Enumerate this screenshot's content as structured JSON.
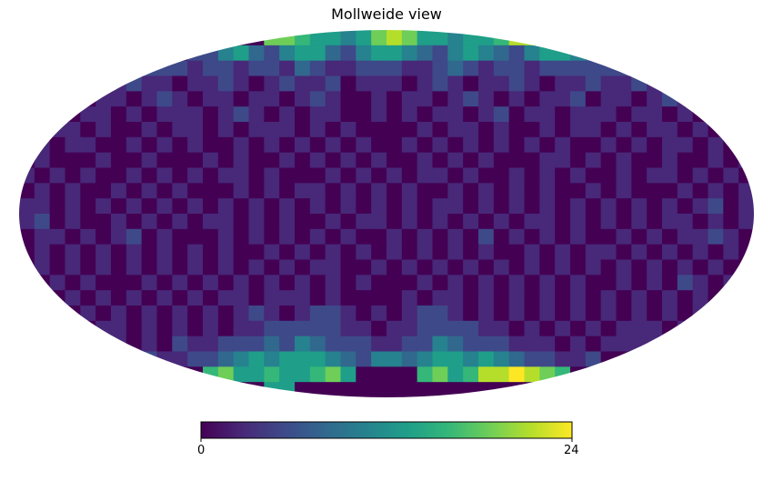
{
  "chart_data": {
    "type": "heatmap",
    "projection": "mollweide",
    "title": "Mollweide view",
    "colormap": "viridis",
    "colorbar": {
      "min_label": "0",
      "max_label": "24",
      "vmin": 0,
      "vmax": 24
    },
    "colors": {
      "viridis": [
        "#440154",
        "#482878",
        "#3e4989",
        "#31688e",
        "#26828e",
        "#1f9e89",
        "#35b779",
        "#6ece58",
        "#b5de2b",
        "#fde725"
      ]
    },
    "grid_cols": 48,
    "grid_rows": 24,
    "values": [
      [
        0,
        0,
        0,
        0,
        0,
        0,
        0,
        0,
        0,
        0,
        0,
        0,
        0,
        0,
        0,
        0,
        18,
        18,
        16,
        14,
        12,
        10,
        14,
        18,
        20,
        18,
        14,
        12,
        10,
        12,
        14,
        16,
        22,
        22,
        24,
        16,
        0,
        0,
        0,
        0,
        0,
        0,
        0,
        0,
        0,
        0,
        0,
        0
      ],
      [
        0,
        0,
        0,
        0,
        0,
        0,
        0,
        0,
        0,
        0,
        0,
        4,
        6,
        10,
        12,
        8,
        6,
        10,
        14,
        12,
        8,
        6,
        10,
        14,
        14,
        10,
        8,
        6,
        10,
        12,
        10,
        8,
        6,
        10,
        14,
        12,
        10,
        8,
        0,
        0,
        0,
        0,
        0,
        0,
        0,
        0,
        0,
        0
      ],
      [
        0,
        0,
        0,
        0,
        0,
        0,
        0,
        0,
        5,
        4,
        6,
        3,
        5,
        4,
        3,
        6,
        4,
        3,
        8,
        5,
        3,
        2,
        4,
        6,
        5,
        3,
        2,
        5,
        8,
        4,
        3,
        5,
        4,
        3,
        6,
        5,
        4,
        6,
        5,
        6,
        0,
        0,
        0,
        0,
        0,
        0,
        0,
        0
      ],
      [
        0,
        0,
        0,
        0,
        0,
        2,
        3,
        5,
        3,
        2,
        1,
        3,
        2,
        4,
        3,
        1,
        2,
        5,
        3,
        2,
        4,
        1,
        2,
        3,
        2,
        1,
        3,
        4,
        2,
        1,
        3,
        2,
        4,
        2,
        1,
        3,
        2,
        4,
        3,
        2,
        5,
        3,
        3,
        0,
        0,
        0,
        0,
        0
      ],
      [
        0,
        0,
        0,
        2,
        1,
        3,
        2,
        1,
        2,
        4,
        2,
        1,
        3,
        2,
        1,
        2,
        3,
        1,
        2,
        4,
        2,
        1,
        0,
        2,
        1,
        3,
        2,
        1,
        2,
        4,
        2,
        1,
        3,
        1,
        2,
        2,
        4,
        1,
        2,
        3,
        1,
        2,
        4,
        2,
        2,
        0,
        0,
        0
      ],
      [
        0,
        0,
        2,
        1,
        2,
        3,
        1,
        2,
        1,
        2,
        3,
        2,
        1,
        2,
        4,
        2,
        1,
        2,
        1,
        3,
        2,
        0,
        1,
        2,
        0,
        2,
        1,
        3,
        2,
        1,
        2,
        4,
        1,
        2,
        3,
        1,
        2,
        3,
        2,
        1,
        2,
        3,
        1,
        2,
        1,
        3,
        0,
        0
      ],
      [
        0,
        1,
        2,
        3,
        1,
        2,
        1,
        0,
        2,
        1,
        2,
        3,
        1,
        2,
        1,
        2,
        3,
        2,
        1,
        2,
        1,
        2,
        0,
        1,
        0,
        1,
        2,
        1,
        2,
        3,
        1,
        2,
        1,
        0,
        2,
        1,
        3,
        2,
        1,
        2,
        1,
        3,
        2,
        1,
        2,
        1,
        2,
        0
      ],
      [
        0,
        2,
        1,
        2,
        2,
        1,
        0,
        2,
        1,
        3,
        1,
        2,
        1,
        0,
        2,
        1,
        2,
        1,
        3,
        1,
        2,
        1,
        2,
        0,
        1,
        2,
        1,
        2,
        1,
        2,
        1,
        3,
        1,
        2,
        1,
        2,
        1,
        0,
        2,
        1,
        2,
        1,
        2,
        3,
        1,
        2,
        1,
        0
      ],
      [
        1,
        2,
        1,
        0,
        1,
        2,
        1,
        1,
        2,
        1,
        0,
        1,
        2,
        1,
        2,
        1,
        0,
        2,
        1,
        2,
        1,
        3,
        1,
        2,
        1,
        0,
        2,
        1,
        2,
        1,
        2,
        1,
        0,
        1,
        2,
        3,
        1,
        2,
        1,
        2,
        1,
        1,
        2,
        1,
        0,
        2,
        1,
        2
      ],
      [
        2,
        1,
        3,
        1,
        2,
        1,
        0,
        2,
        1,
        2,
        1,
        2,
        1,
        2,
        3,
        1,
        2,
        1,
        0,
        1,
        2,
        1,
        2,
        1,
        2,
        1,
        2,
        3,
        1,
        2,
        0,
        1,
        2,
        1,
        2,
        1,
        2,
        1,
        0,
        2,
        1,
        2,
        3,
        1,
        2,
        1,
        2,
        1
      ],
      [
        1,
        2,
        1,
        2,
        0,
        1,
        2,
        1,
        2,
        1,
        3,
        1,
        0,
        1,
        2,
        1,
        2,
        1,
        2,
        3,
        1,
        2,
        1,
        2,
        1,
        2,
        1,
        0,
        2,
        1,
        2,
        1,
        3,
        1,
        2,
        0,
        1,
        2,
        1,
        2,
        1,
        0,
        1,
        2,
        1,
        2,
        1,
        2
      ],
      [
        3,
        2,
        1,
        2,
        1,
        2,
        1,
        2,
        0,
        2,
        1,
        2,
        1,
        2,
        1,
        2,
        1,
        2,
        1,
        2,
        1,
        2,
        1,
        2,
        1,
        2,
        1,
        2,
        3,
        1,
        2,
        1,
        2,
        1,
        2,
        1,
        2,
        1,
        2,
        1,
        2,
        1,
        2,
        1,
        2,
        4,
        1,
        2
      ],
      [
        2,
        4,
        1,
        2,
        1,
        0,
        2,
        1,
        2,
        1,
        2,
        1,
        2,
        3,
        1,
        2,
        1,
        2,
        0,
        1,
        2,
        1,
        3,
        2,
        1,
        2,
        1,
        2,
        1,
        2,
        1,
        2,
        1,
        3,
        2,
        1,
        2,
        1,
        2,
        1,
        2,
        1,
        2,
        3,
        1,
        2,
        1,
        2
      ],
      [
        1,
        2,
        2,
        1,
        2,
        1,
        2,
        4,
        1,
        2,
        1,
        0,
        1,
        2,
        1,
        2,
        1,
        2,
        1,
        2,
        1,
        2,
        1,
        0,
        2,
        1,
        2,
        1,
        2,
        1,
        4,
        1,
        2,
        1,
        2,
        1,
        2,
        0,
        1,
        2,
        1,
        2,
        1,
        2,
        2,
        4,
        2,
        1
      ],
      [
        1,
        2,
        1,
        2,
        1,
        2,
        1,
        2,
        1,
        2,
        1,
        2,
        1,
        2,
        1,
        0,
        2,
        1,
        2,
        1,
        2,
        1,
        2,
        1,
        2,
        1,
        2,
        1,
        2,
        1,
        2,
        1,
        0,
        2,
        1,
        2,
        1,
        2,
        3,
        1,
        2,
        1,
        2,
        1,
        2,
        1,
        2,
        1
      ],
      [
        0,
        2,
        1,
        2,
        1,
        2,
        1,
        2,
        1,
        3,
        1,
        2,
        1,
        2,
        1,
        2,
        1,
        2,
        1,
        2,
        3,
        1,
        0,
        2,
        1,
        2,
        1,
        2,
        1,
        2,
        1,
        2,
        1,
        2,
        1,
        2,
        1,
        2,
        1,
        2,
        1,
        2,
        1,
        2,
        1,
        2,
        1,
        0
      ],
      [
        0,
        1,
        2,
        1,
        2,
        1,
        0,
        1,
        2,
        1,
        2,
        1,
        2,
        1,
        2,
        1,
        2,
        1,
        2,
        1,
        2,
        1,
        2,
        1,
        0,
        1,
        2,
        1,
        2,
        1,
        2,
        1,
        2,
        1,
        2,
        1,
        2,
        1,
        0,
        2,
        1,
        2,
        1,
        4,
        2,
        1,
        2,
        0
      ],
      [
        0,
        2,
        1,
        2,
        1,
        2,
        1,
        2,
        1,
        2,
        1,
        2,
        1,
        2,
        3,
        1,
        2,
        3,
        2,
        1,
        2,
        1,
        0,
        1,
        1,
        2,
        1,
        2,
        3,
        1,
        2,
        1,
        2,
        1,
        2,
        1,
        2,
        1,
        2,
        1,
        2,
        1,
        2,
        1,
        2,
        1,
        2,
        0
      ],
      [
        0,
        0,
        2,
        1,
        2,
        1,
        2,
        1,
        2,
        1,
        2,
        1,
        2,
        1,
        2,
        4,
        2,
        1,
        3,
        4,
        5,
        3,
        1,
        2,
        1,
        3,
        5,
        4,
        3,
        1,
        2,
        1,
        2,
        1,
        2,
        1,
        2,
        1,
        2,
        1,
        2,
        1,
        2,
        1,
        2,
        1,
        0,
        0
      ],
      [
        0,
        0,
        0,
        2,
        1,
        2,
        3,
        1,
        2,
        1,
        2,
        1,
        2,
        1,
        3,
        2,
        5,
        4,
        6,
        5,
        4,
        3,
        2,
        1,
        2,
        3,
        4,
        6,
        5,
        4,
        3,
        2,
        1,
        2,
        1,
        2,
        1,
        2,
        1,
        2,
        3,
        2,
        1,
        2,
        1,
        0,
        0,
        0
      ],
      [
        0,
        0,
        0,
        0,
        0,
        3,
        2,
        1,
        2,
        1,
        4,
        3,
        2,
        4,
        6,
        5,
        8,
        6,
        10,
        8,
        6,
        5,
        4,
        3,
        3,
        4,
        6,
        10,
        8,
        6,
        5,
        4,
        2,
        3,
        2,
        1,
        2,
        1,
        2,
        3,
        2,
        3,
        0,
        0,
        0,
        0,
        0,
        0
      ],
      [
        0,
        0,
        0,
        0,
        0,
        0,
        0,
        0,
        4,
        3,
        2,
        5,
        6,
        8,
        10,
        12,
        10,
        12,
        14,
        12,
        10,
        8,
        6,
        10,
        10,
        8,
        10,
        14,
        12,
        10,
        12,
        10,
        8,
        6,
        4,
        3,
        2,
        4,
        0,
        0,
        0,
        0,
        0,
        0,
        0,
        0,
        0,
        0
      ],
      [
        0,
        0,
        0,
        0,
        0,
        0,
        0,
        0,
        0,
        0,
        0,
        0,
        16,
        18,
        14,
        12,
        16,
        14,
        12,
        16,
        18,
        14,
        0,
        0,
        0,
        0,
        16,
        18,
        14,
        16,
        20,
        22,
        24,
        20,
        18,
        16,
        0,
        0,
        0,
        0,
        0,
        0,
        0,
        0,
        0,
        0,
        0,
        0
      ],
      [
        0,
        0,
        0,
        0,
        0,
        0,
        0,
        0,
        0,
        0,
        0,
        0,
        0,
        0,
        0,
        0,
        12,
        14,
        0,
        0,
        0,
        0,
        0,
        0,
        0,
        0,
        0,
        0,
        0,
        0,
        0,
        0,
        0,
        0,
        0,
        0,
        0,
        0,
        0,
        0,
        0,
        0,
        0,
        0,
        0,
        0,
        0,
        0
      ]
    ]
  }
}
